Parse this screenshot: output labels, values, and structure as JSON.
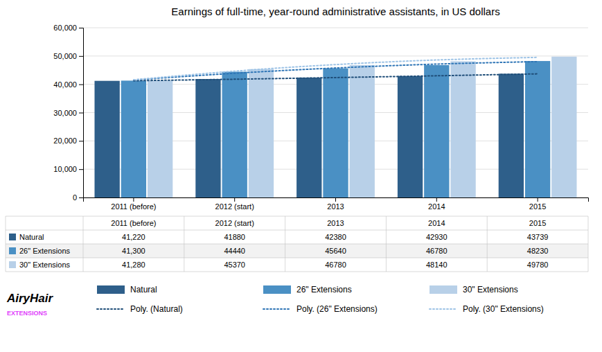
{
  "chart_data": {
    "type": "bar",
    "title": "Earnings of full-time, year-round administrative assistants, in US dollars",
    "categories": [
      "2011 (before)",
      "2012 (start)",
      "2013",
      "2014",
      "2015"
    ],
    "series": [
      {
        "name": "Natural",
        "color": "#2E5F8A",
        "values": [
          41220,
          41880,
          42380,
          42930,
          43739
        ],
        "value_labels": [
          "41,220",
          "41880",
          "42380",
          "42930",
          "43739"
        ]
      },
      {
        "name": "26\" Extensions",
        "color": "#4A90C4",
        "values": [
          41300,
          44440,
          45640,
          46780,
          48230
        ],
        "value_labels": [
          "41,300",
          "44440",
          "45640",
          "46780",
          "48230"
        ]
      },
      {
        "name": "30\" Extensions",
        "color": "#B8D0E8",
        "values": [
          41280,
          45370,
          46780,
          48140,
          49780
        ],
        "value_labels": [
          "41,280",
          "45370",
          "46780",
          "48140",
          "49780"
        ]
      },
      {
        "name": "Poly. (Natural)",
        "type": "line",
        "line_style": "dotted",
        "color": "#1F4E79",
        "values": [
          41261.9143,
          41796.1429,
          42380.0857,
          43013.7429,
          43697.1143
        ]
      },
      {
        "name": "Poly. (26\" Extensions)",
        "type": "line",
        "line_style": "dotted",
        "color": "#2E75B6",
        "values": [
          41546.5714,
          43903.7143,
          45769.4286,
          47143.7143,
          48026.5714
        ]
      },
      {
        "name": "Poly. (30\" Extensions)",
        "type": "line",
        "line_style": "dotted",
        "color": "#9DC3E6",
        "values": [
          41608.8571,
          44646.5714,
          46977.1429,
          48600.5714,
          49516.8571
        ]
      }
    ],
    "ylim": [
      0,
      60000
    ],
    "yticks": [
      0,
      {
        "value": 10000,
        "label": "10,000"
      },
      {
        "value": 20000,
        "label": "20,000"
      },
      {
        "value": 30000,
        "label": "30,000"
      },
      {
        "value": 40000,
        "label": "40,000"
      },
      {
        "value": 50000,
        "label": "50,000"
      },
      {
        "value": 60000,
        "label": "60,000"
      }
    ],
    "grid": true,
    "legend": "bottom",
    "annotations": [
      "AiryHair",
      "EXTENSIONS"
    ]
  }
}
